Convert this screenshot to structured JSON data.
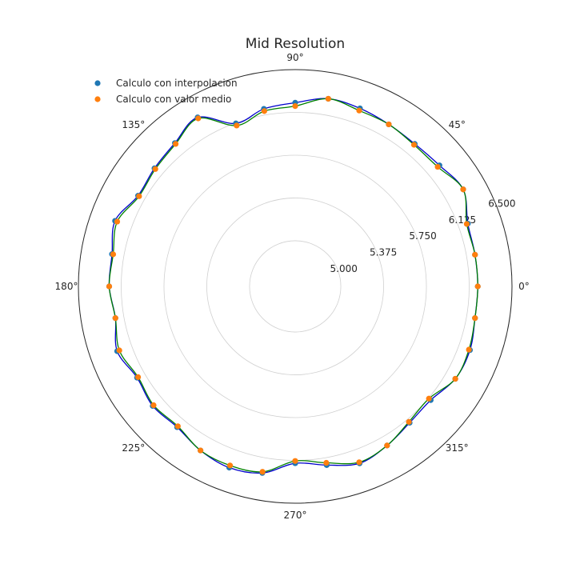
{
  "chart_data": {
    "type": "scatter",
    "projection": "polar",
    "title": "Mid Resolution",
    "theta_unit": "degrees",
    "rlim": [
      4.6,
      6.5
    ],
    "r_ticks": [
      5.0,
      5.375,
      5.75,
      6.125,
      6.5
    ],
    "r_tick_labels": [
      "5.000",
      "5.375",
      "5.750",
      "6.125",
      "6.500"
    ],
    "theta_ticks": [
      0,
      45,
      90,
      135,
      180,
      225,
      270,
      315
    ],
    "theta_tick_labels": [
      "0°",
      "45°",
      "90°",
      "135°",
      "180°",
      "225°",
      "270°",
      "315°"
    ],
    "grid": true,
    "legend_position": "upper-left",
    "theta": [
      0,
      10,
      20,
      30,
      40,
      50,
      60,
      70,
      80,
      90,
      100,
      110,
      120,
      130,
      140,
      150,
      160,
      170,
      180,
      190,
      200,
      210,
      220,
      230,
      240,
      250,
      260,
      270,
      280,
      290,
      300,
      310,
      320,
      330,
      340,
      350
    ],
    "series": [
      {
        "name": "Calculo con interpolacion",
        "color": "#1f77b4",
        "r": [
          6.2,
          6.2,
          6.21,
          6.3,
          6.25,
          6.23,
          6.24,
          6.26,
          6.27,
          6.21,
          6.18,
          6.12,
          6.31,
          6.24,
          6.21,
          6.19,
          6.28,
          6.23,
          6.23,
          6.2,
          6.26,
          6.2,
          6.23,
          6.21,
          6.26,
          6.29,
          6.26,
          6.15,
          6.19,
          6.25,
          6.21,
          6.16,
          6.15,
          6.22,
          6.23,
          6.2
        ]
      },
      {
        "name": "Calculo con valor medio",
        "color": "#ff7f0e",
        "r": [
          6.2,
          6.2,
          6.2,
          6.3,
          6.23,
          6.22,
          6.24,
          6.24,
          6.27,
          6.18,
          6.16,
          6.1,
          6.3,
          6.23,
          6.2,
          6.18,
          6.26,
          6.22,
          6.23,
          6.2,
          6.24,
          6.19,
          6.22,
          6.2,
          6.26,
          6.27,
          6.25,
          6.13,
          6.17,
          6.24,
          6.21,
          6.15,
          6.13,
          6.22,
          6.22,
          6.2
        ]
      }
    ],
    "line_colors": [
      "#0000cc",
      "#008000"
    ]
  }
}
